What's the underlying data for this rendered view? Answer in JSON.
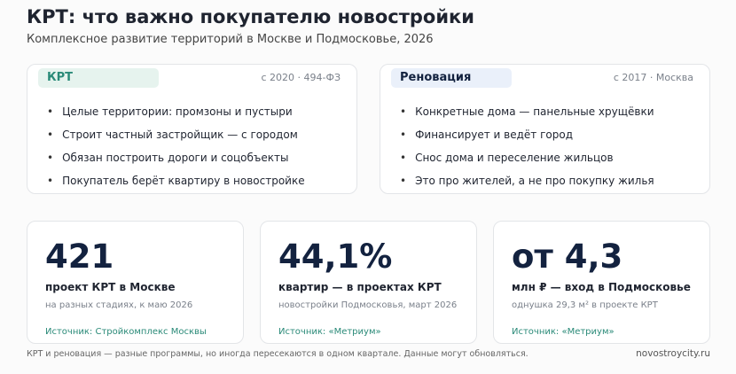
{
  "header": {
    "title": "КРТ: что важно покупателю новостройки",
    "subtitle": "Комплексное развитие территорий в Москве и Подмосковье, 2026"
  },
  "cards": [
    {
      "tag": "КРТ",
      "meta": "с 2020 · 494-ФЗ",
      "items": [
        "Целые территории: промзоны и пустыри",
        "Строит частный застройщик — с городом",
        "Обязан построить дороги и соцобъекты",
        "Покупатель берёт квартиру в новостройке"
      ]
    },
    {
      "tag": "Реновация",
      "meta": "с 2017 · Москва",
      "items": [
        "Конкретные дома — панельные хрущёвки",
        "Финансирует и ведёт город",
        "Снос дома и переселение жильцов",
        "Это про жителей, а не про покупку жилья"
      ]
    }
  ],
  "stats": [
    {
      "value": "421",
      "label": "проект КРТ в Москве",
      "note": "на разных стадиях, к маю 2026",
      "source": "Источник: Стройкомплекс Москвы"
    },
    {
      "value": "44,1%",
      "label": "квартир — в проектах КРТ",
      "note": "новостройки Подмосковья, март 2026",
      "source": "Источник: «Метриум»"
    },
    {
      "value": "от 4,3",
      "label": "млн ₽ — вход в Подмосковье",
      "note": "однушка 29,3 м² в проекте КРТ",
      "source": "Источник: «Метриум»"
    }
  ],
  "footer": {
    "note": "КРТ и реновация — разные программы, но иногда пересекаются в одном квартале. Данные могут обновляться.",
    "site": "novostroycity.ru"
  }
}
